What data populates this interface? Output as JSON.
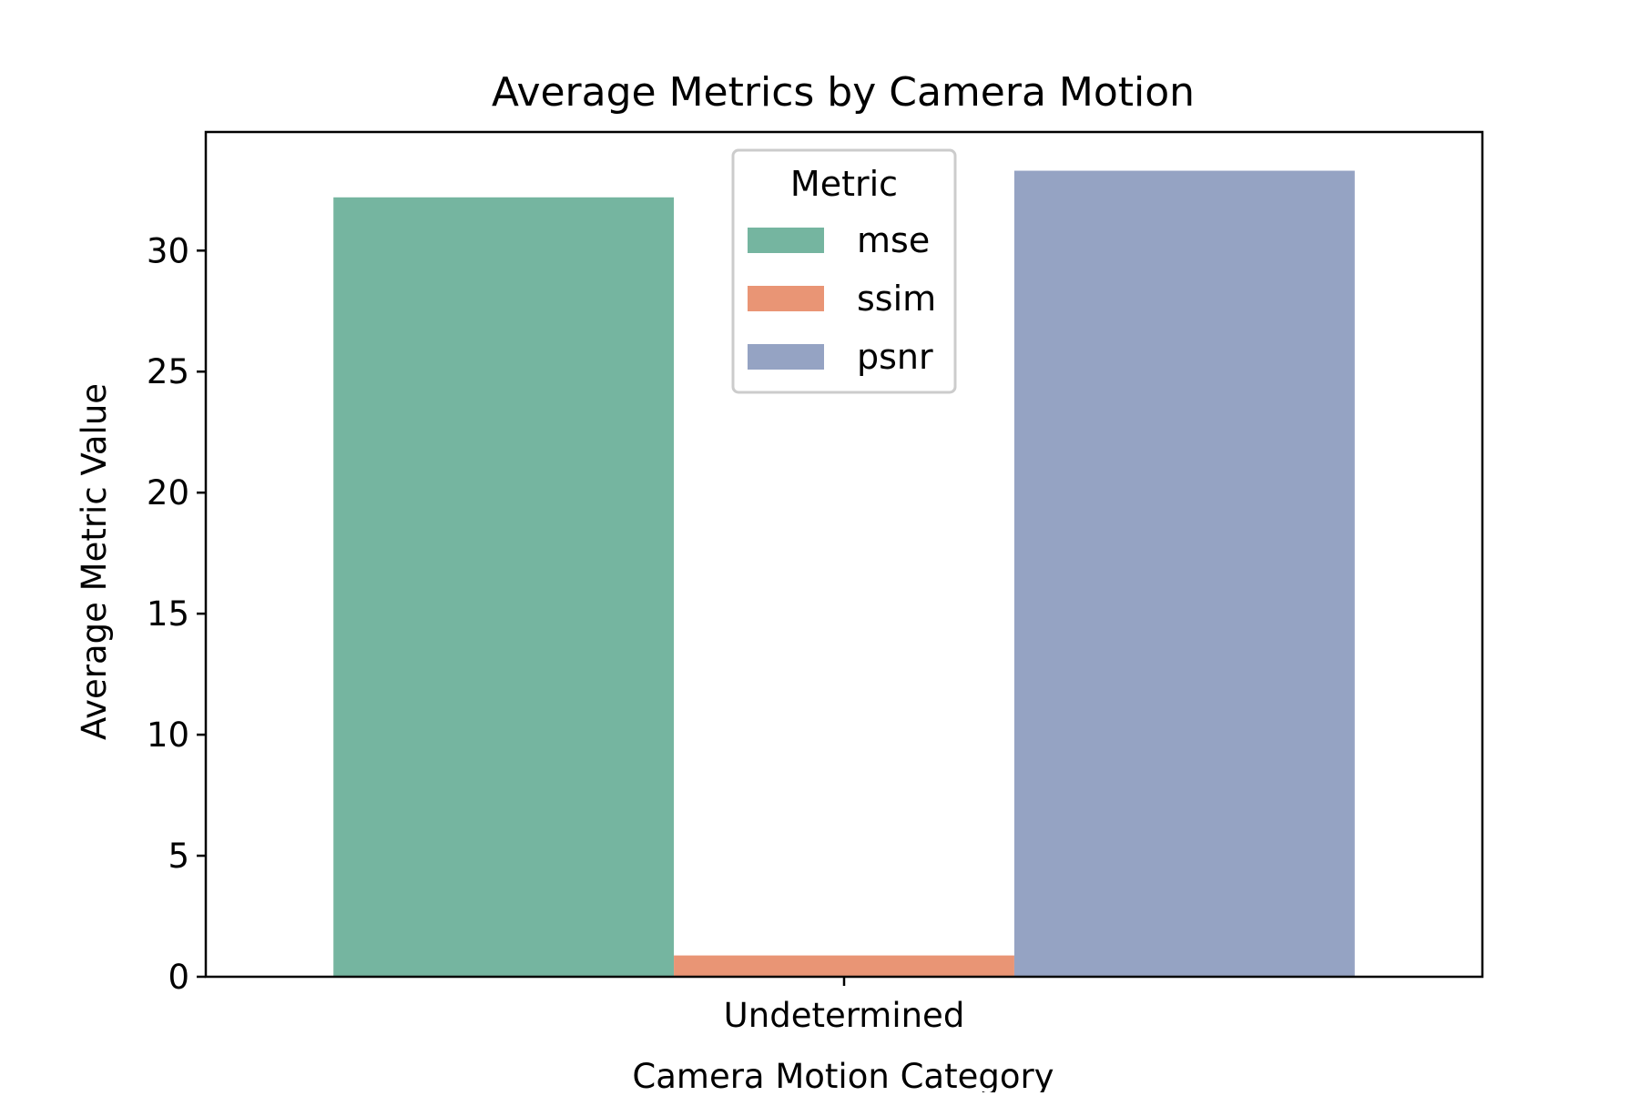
{
  "chart_data": {
    "type": "bar",
    "title": "Average Metrics by Camera Motion",
    "xlabel": "Camera Motion Category",
    "ylabel": "Average Metric Value",
    "categories": [
      "Undetermined"
    ],
    "series": [
      {
        "name": "mse",
        "color": "#75b5a0",
        "values": [
          32.2
        ]
      },
      {
        "name": "ssim",
        "color": "#e99575",
        "values": [
          0.88
        ]
      },
      {
        "name": "psnr",
        "color": "#95a3c3",
        "values": [
          33.3
        ]
      }
    ],
    "ylim": [
      0,
      34.9
    ],
    "yticks": [
      0,
      5,
      10,
      15,
      20,
      25,
      30
    ],
    "grid": false,
    "legend": {
      "title": "Metric",
      "placement": "upper-center"
    }
  }
}
